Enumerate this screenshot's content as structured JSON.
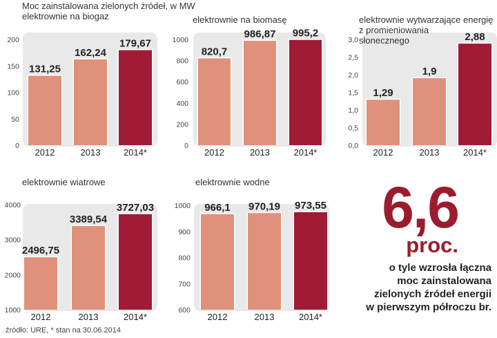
{
  "header": {
    "title_line1": "Moc zainstalowana zielonych źródeł, w MW"
  },
  "colors": {
    "bar_light": "#e0917c",
    "bar_dark": "#a01b35",
    "panel_bg": "#e9e9e9",
    "accent": "#9b1c2e"
  },
  "chart_data": [
    {
      "type": "bar",
      "title": "elektrownie na biogaz",
      "categories": [
        "2012",
        "2013",
        "2014*"
      ],
      "values": [
        131.25,
        162.24,
        179.67
      ],
      "value_labels": [
        "131,25",
        "162,24",
        "179,67"
      ],
      "ylim": [
        0,
        200
      ],
      "yticks": [
        "0",
        "50",
        "100",
        "150",
        "200"
      ],
      "ytick_values": [
        0,
        50,
        100,
        150,
        200
      ],
      "xlabel": "",
      "ylabel": ""
    },
    {
      "type": "bar",
      "title": "elektrownie na biomasę",
      "categories": [
        "2012",
        "2013",
        "2014*"
      ],
      "values": [
        820.7,
        986.87,
        995.2
      ],
      "value_labels": [
        "820,7",
        "986,87",
        "995,2"
      ],
      "ylim": [
        0,
        1000
      ],
      "yticks": [
        "0",
        "200",
        "400",
        "600",
        "800",
        "1000"
      ],
      "ytick_values": [
        0,
        200,
        400,
        600,
        800,
        1000
      ],
      "xlabel": "",
      "ylabel": ""
    },
    {
      "type": "bar",
      "title": "elektrownie wytwarzające energię z promieniowania słonecznego",
      "title_lines": [
        "elektrownie wytwarzające energię",
        "z promieniowania",
        "słonecznego"
      ],
      "categories": [
        "2012",
        "2013",
        "2014*"
      ],
      "values": [
        1.29,
        1.9,
        2.88
      ],
      "value_labels": [
        "1,29",
        "1,9",
        "2,88"
      ],
      "ylim": [
        0,
        3.0
      ],
      "yticks": [
        "0,0",
        "0,5",
        "1,0",
        "1,5",
        "2,0",
        "2,5",
        "3,0"
      ],
      "ytick_values": [
        0,
        0.5,
        1.0,
        1.5,
        2.0,
        2.5,
        3.0
      ],
      "xlabel": "",
      "ylabel": ""
    },
    {
      "type": "bar",
      "title": "elektrownie wiatrowe",
      "categories": [
        "2012",
        "2013",
        "2014*"
      ],
      "values": [
        2496.75,
        3389.54,
        3727.03
      ],
      "value_labels": [
        "2496,75",
        "3389,54",
        "3727,03"
      ],
      "ylim": [
        1000,
        4000
      ],
      "yticks": [
        "1000",
        "2000",
        "3000",
        "4000"
      ],
      "ytick_values": [
        1000,
        2000,
        3000,
        4000
      ],
      "xlabel": "",
      "ylabel": ""
    },
    {
      "type": "bar",
      "title": "elektrownie wodne",
      "categories": [
        "2012",
        "2013",
        "2014*"
      ],
      "values": [
        966.1,
        970.19,
        973.55
      ],
      "value_labels": [
        "966,1",
        "970,19",
        "973,55"
      ],
      "ylim": [
        600,
        1000
      ],
      "yticks": [
        "600",
        "700",
        "800",
        "900",
        "1000"
      ],
      "ytick_values": [
        600,
        700,
        800,
        900,
        1000
      ],
      "xlabel": "",
      "ylabel": ""
    }
  ],
  "highlight": {
    "value": "6,6",
    "unit": "proc.",
    "desc_lines": [
      "o tyle wzrosła łączna",
      "moc zainstalowana",
      "zielonych źródeł energii",
      "w pierwszym półroczu br."
    ]
  },
  "footer": {
    "source": "źródło: URE, * stan na 30.06.2014"
  }
}
